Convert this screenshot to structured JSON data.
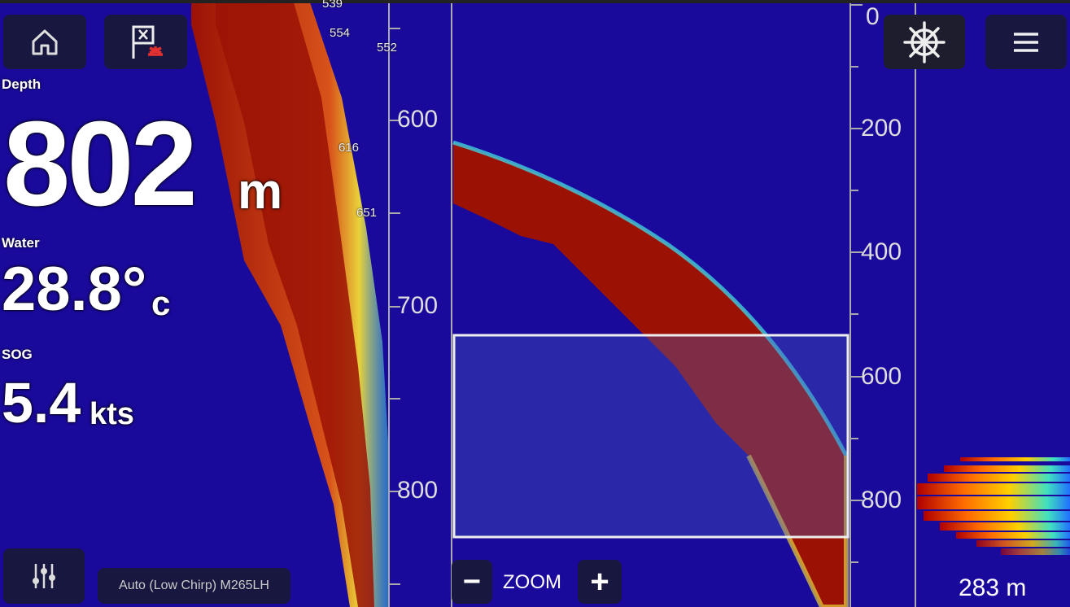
{
  "colors": {
    "background": "#1a0a9c",
    "echo_strong": "#9b1205",
    "echo_edge": "#3fd0e0",
    "button_bg": "#17173f"
  },
  "buttons": {
    "home": "home-icon",
    "waypoint": "waypoint-flag-icon",
    "helm": "ships-wheel-icon",
    "menu": "hamburger-menu-icon",
    "settings": "sliders-icon"
  },
  "readouts": {
    "depth": {
      "label": "Depth",
      "value": "802",
      "unit": "m"
    },
    "water": {
      "label": "Water",
      "value": "28.8°",
      "unit": "c"
    },
    "sog": {
      "label": "SOG",
      "value": "5.4",
      "unit": "kts"
    }
  },
  "history_marks": [
    "539",
    "554",
    "552",
    "616",
    "651"
  ],
  "history_scale": [
    "600",
    "700",
    "800"
  ],
  "zoom_scale": [
    "0",
    "200",
    "400",
    "600",
    "800"
  ],
  "zoom_controls": {
    "minus": "−",
    "label": "ZOOM",
    "plus": "+"
  },
  "sonar_mode": "Auto (Low Chirp) M265LH",
  "ascope_depth": "283 m"
}
